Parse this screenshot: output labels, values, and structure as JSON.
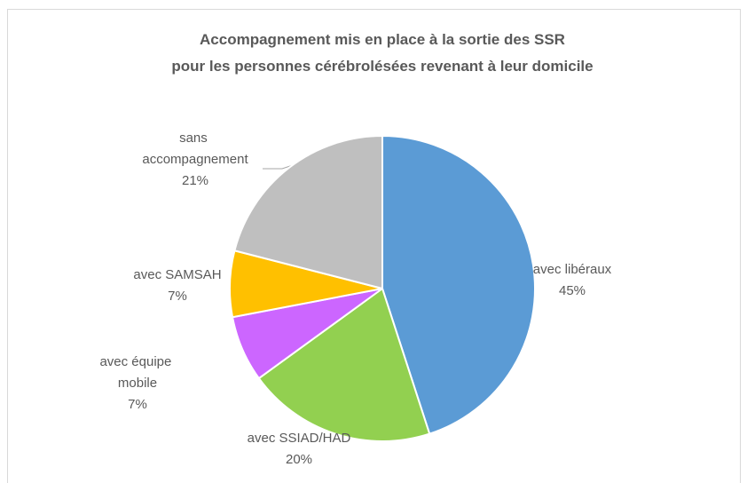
{
  "chart_data": {
    "type": "pie",
    "title": [
      "Accompagnement mis en place à la sortie des SSR",
      "pour les personnes cérébrolésées revenant à leur domicile"
    ],
    "categories": [
      "avec libéraux",
      "avec SSIAD/HAD",
      "avec équipe mobile",
      "avec SAMSAH",
      "sans accompagnement"
    ],
    "values": [
      45,
      20,
      7,
      7,
      21
    ],
    "value_labels": [
      "45%",
      "20%",
      "7%",
      "7%",
      "21%"
    ],
    "colors": [
      "#5b9bd5",
      "#92d050",
      "#cc66ff",
      "#ffc000",
      "#bfbfbf"
    ]
  }
}
